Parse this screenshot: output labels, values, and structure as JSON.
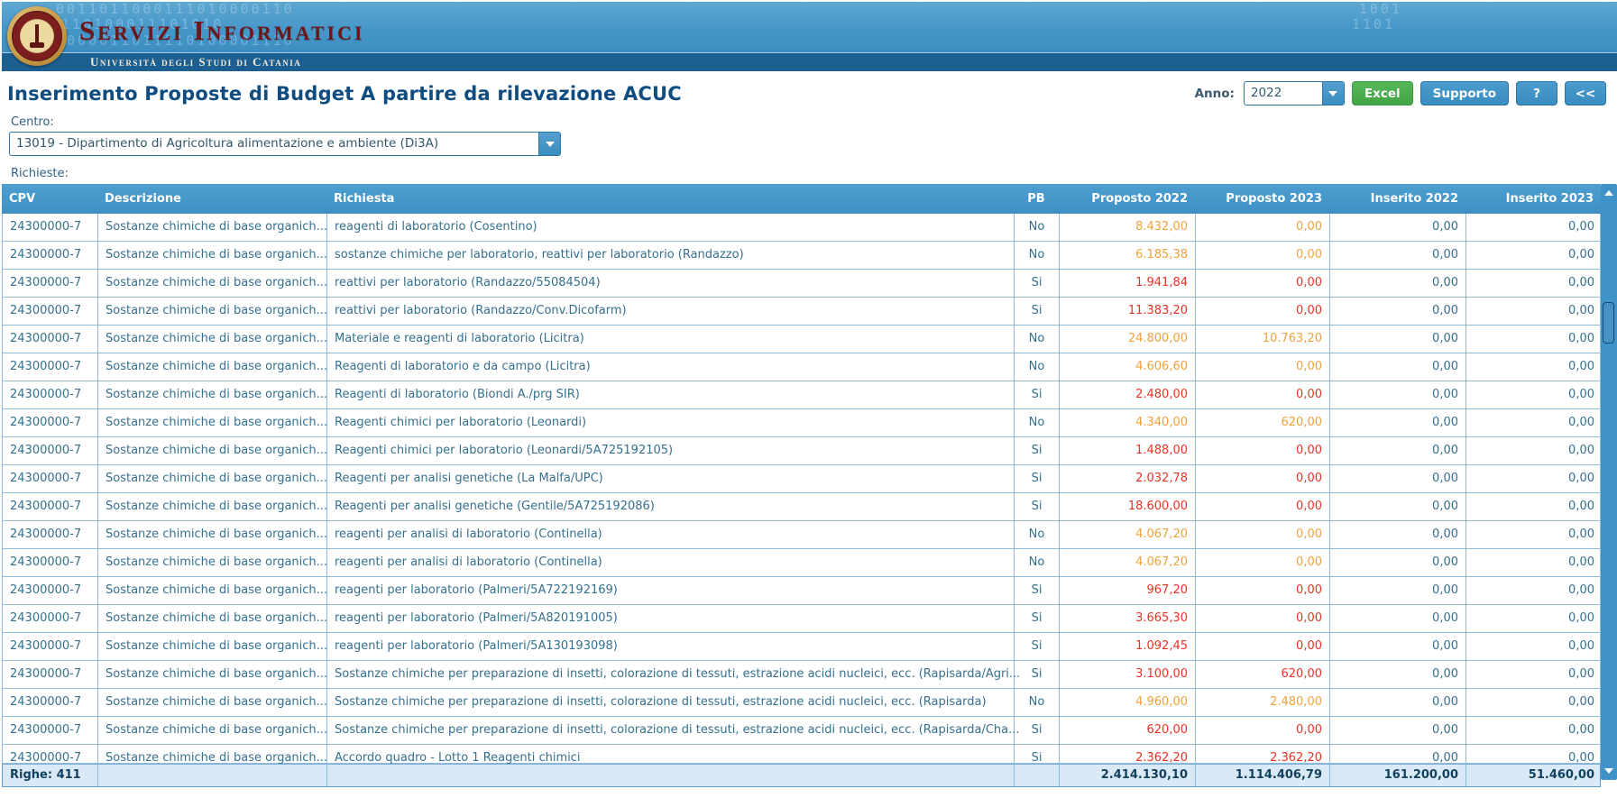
{
  "branding": {
    "app_title": "Servizi Informatici",
    "app_subtitle": "Università degli Studi di Catania",
    "decoration": {
      "line1": "0011011000111010000110",
      "line2": "0110100011101010",
      "line3": "1000011011110100001110",
      "right1": "1001",
      "right2": "1101"
    }
  },
  "toolbar": {
    "page_title": "Inserimento Proposte di Budget A partire da rilevazione ACUC",
    "anno_label": "Anno:",
    "anno_value": "2022",
    "excel_label": "Excel",
    "supporto_label": "Supporto",
    "help_label": "?",
    "back_label": "<<"
  },
  "filters": {
    "centro_label": "Centro:",
    "centro_value": "13019 - Dipartimento di Agricoltura alimentazione e ambiente (Di3A)",
    "richieste_label": "Richieste:"
  },
  "table": {
    "columns": [
      {
        "label": "CPV"
      },
      {
        "label": "Descrizione"
      },
      {
        "label": "Richiesta"
      },
      {
        "label": "PB"
      },
      {
        "label": "Proposto 2022"
      },
      {
        "label": "Proposto 2023"
      },
      {
        "label": "Inserito 2022"
      },
      {
        "label": "Inserito 2023"
      }
    ],
    "rows": [
      {
        "cpv": "24300000-7",
        "descrizione": "Sostanze chimiche di base organich...",
        "richiesta": "reagenti di laboratorio (Cosentino)",
        "pb": "No",
        "p2022": "8.432,00",
        "p2023": "0,00",
        "i2022": "0,00",
        "i2023": "0,00",
        "tone": "orange"
      },
      {
        "cpv": "24300000-7",
        "descrizione": "Sostanze chimiche di base organich...",
        "richiesta": "sostanze chimiche per laboratorio, reattivi per laboratorio (Randazzo)",
        "pb": "No",
        "p2022": "6.185,38",
        "p2023": "0,00",
        "i2022": "0,00",
        "i2023": "0,00",
        "tone": "orange"
      },
      {
        "cpv": "24300000-7",
        "descrizione": "Sostanze chimiche di base organich...",
        "richiesta": "reattivi per laboratorio (Randazzo/55084504)",
        "pb": "Si",
        "p2022": "1.941,84",
        "p2023": "0,00",
        "i2022": "0,00",
        "i2023": "0,00",
        "tone": "red"
      },
      {
        "cpv": "24300000-7",
        "descrizione": "Sostanze chimiche di base organich...",
        "richiesta": "reattivi per laboratorio (Randazzo/Conv.Dicofarm)",
        "pb": "Si",
        "p2022": "11.383,20",
        "p2023": "0,00",
        "i2022": "0,00",
        "i2023": "0,00",
        "tone": "red"
      },
      {
        "cpv": "24300000-7",
        "descrizione": "Sostanze chimiche di base organich...",
        "richiesta": "Materiale e reagenti di laboratorio (Licitra)",
        "pb": "No",
        "p2022": "24.800,00",
        "p2023": "10.763,20",
        "i2022": "0,00",
        "i2023": "0,00",
        "tone": "orange"
      },
      {
        "cpv": "24300000-7",
        "descrizione": "Sostanze chimiche di base organich...",
        "richiesta": "Reagenti di laboratorio e da campo (Licitra)",
        "pb": "No",
        "p2022": "4.606,60",
        "p2023": "0,00",
        "i2022": "0,00",
        "i2023": "0,00",
        "tone": "orange"
      },
      {
        "cpv": "24300000-7",
        "descrizione": "Sostanze chimiche di base organich...",
        "richiesta": "Reagenti di laboratorio (Biondi A./prg SIR)",
        "pb": "Si",
        "p2022": "2.480,00",
        "p2023": "0,00",
        "i2022": "0,00",
        "i2023": "0,00",
        "tone": "red"
      },
      {
        "cpv": "24300000-7",
        "descrizione": "Sostanze chimiche di base organich...",
        "richiesta": "Reagenti chimici per laboratorio (Leonardi)",
        "pb": "No",
        "p2022": "4.340,00",
        "p2023": "620,00",
        "i2022": "0,00",
        "i2023": "0,00",
        "tone": "orange"
      },
      {
        "cpv": "24300000-7",
        "descrizione": "Sostanze chimiche di base organich...",
        "richiesta": "Reagenti chimici per laboratorio (Leonardi/5A725192105)",
        "pb": "Si",
        "p2022": "1.488,00",
        "p2023": "0,00",
        "i2022": "0,00",
        "i2023": "0,00",
        "tone": "red"
      },
      {
        "cpv": "24300000-7",
        "descrizione": "Sostanze chimiche di base organich...",
        "richiesta": "Reagenti per analisi genetiche (La Malfa/UPC)",
        "pb": "Si",
        "p2022": "2.032,78",
        "p2023": "0,00",
        "i2022": "0,00",
        "i2023": "0,00",
        "tone": "red"
      },
      {
        "cpv": "24300000-7",
        "descrizione": "Sostanze chimiche di base organich...",
        "richiesta": "Reagenti per analisi genetiche (Gentile/5A725192086)",
        "pb": "Si",
        "p2022": "18.600,00",
        "p2023": "0,00",
        "i2022": "0,00",
        "i2023": "0,00",
        "tone": "red"
      },
      {
        "cpv": "24300000-7",
        "descrizione": "Sostanze chimiche di base organich...",
        "richiesta": "reagenti per analisi di laboratorio (Continella)",
        "pb": "No",
        "p2022": "4.067,20",
        "p2023": "0,00",
        "i2022": "0,00",
        "i2023": "0,00",
        "tone": "orange"
      },
      {
        "cpv": "24300000-7",
        "descrizione": "Sostanze chimiche di base organich...",
        "richiesta": "reagenti per analisi di laboratorio (Continella)",
        "pb": "No",
        "p2022": "4.067,20",
        "p2023": "0,00",
        "i2022": "0,00",
        "i2023": "0,00",
        "tone": "orange"
      },
      {
        "cpv": "24300000-7",
        "descrizione": "Sostanze chimiche di base organich...",
        "richiesta": "reagenti per laboratorio (Palmeri/5A722192169)",
        "pb": "Si",
        "p2022": "967,20",
        "p2023": "0,00",
        "i2022": "0,00",
        "i2023": "0,00",
        "tone": "red"
      },
      {
        "cpv": "24300000-7",
        "descrizione": "Sostanze chimiche di base organich...",
        "richiesta": "reagenti per laboratorio (Palmeri/5A820191005)",
        "pb": "Si",
        "p2022": "3.665,30",
        "p2023": "0,00",
        "i2022": "0,00",
        "i2023": "0,00",
        "tone": "red"
      },
      {
        "cpv": "24300000-7",
        "descrizione": "Sostanze chimiche di base organich...",
        "richiesta": "reagenti per laboratorio (Palmeri/5A130193098)",
        "pb": "Si",
        "p2022": "1.092,45",
        "p2023": "0,00",
        "i2022": "0,00",
        "i2023": "0,00",
        "tone": "red"
      },
      {
        "cpv": "24300000-7",
        "descrizione": "Sostanze chimiche di base organich...",
        "richiesta": "Sostanze chimiche per preparazione di insetti, colorazione di tessuti, estrazione acidi nucleici, ecc. (Rapisarda/Agri...",
        "pb": "Si",
        "p2022": "3.100,00",
        "p2023": "620,00",
        "i2022": "0,00",
        "i2023": "0,00",
        "tone": "red"
      },
      {
        "cpv": "24300000-7",
        "descrizione": "Sostanze chimiche di base organich...",
        "richiesta": "Sostanze chimiche per preparazione di insetti, colorazione di tessuti, estrazione acidi nucleici, ecc. (Rapisarda)",
        "pb": "No",
        "p2022": "4.960,00",
        "p2023": "2.480,00",
        "i2022": "0,00",
        "i2023": "0,00",
        "tone": "orange"
      },
      {
        "cpv": "24300000-7",
        "descrizione": "Sostanze chimiche di base organich...",
        "richiesta": "Sostanze chimiche per preparazione di insetti, colorazione di tessuti, estrazione acidi nucleici, ecc. (Rapisarda/Cha...",
        "pb": "Si",
        "p2022": "620,00",
        "p2023": "0,00",
        "i2022": "0,00",
        "i2023": "0,00",
        "tone": "red"
      },
      {
        "cpv": "24300000-7",
        "descrizione": "Sostanze chimiche di base organich...",
        "richiesta": "Accordo quadro - Lotto 1 Reagenti chimici",
        "pb": "Si",
        "p2022": "2.362,20",
        "p2023": "2.362,20",
        "i2022": "0,00",
        "i2023": "0,00",
        "tone": "red",
        "clipped": true
      }
    ],
    "footer": {
      "righe": "Righe: 411",
      "p2022": "2.414.130,10",
      "p2023": "1.114.406,79",
      "i2022": "161.200,00",
      "i2023": "51.460,00"
    }
  },
  "colors": {
    "header_blue": "#3f93c8",
    "strip_navy": "#1e5f92",
    "brand_maroon": "#6e1518",
    "title_navy": "#0f4c80",
    "cell_text": "#35708e",
    "value_orange": "#f0a13c",
    "value_red": "#ee3224",
    "footer_bg": "#d9e9f5",
    "excel_green": "#4cb050"
  }
}
